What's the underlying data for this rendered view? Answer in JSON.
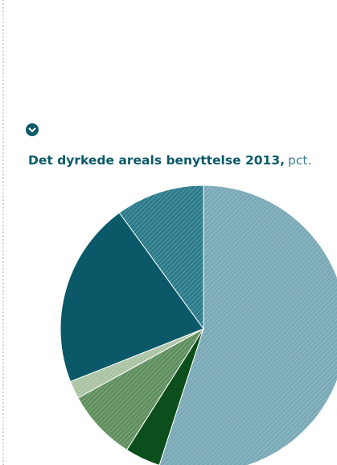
{
  "chart_data": {
    "type": "pie",
    "title": "Det dyrkede areals benyttelse 2013,",
    "subtitle": "pct.",
    "values": [
      55,
      4,
      8,
      2,
      21,
      10
    ],
    "colors": [
      "#79a9b6",
      "#0c4f1c",
      "#5f8f5e",
      "#aac3a3",
      "#0b5968",
      "#2b7b8b"
    ],
    "hatched": [
      true,
      false,
      true,
      true,
      false,
      true
    ]
  }
}
